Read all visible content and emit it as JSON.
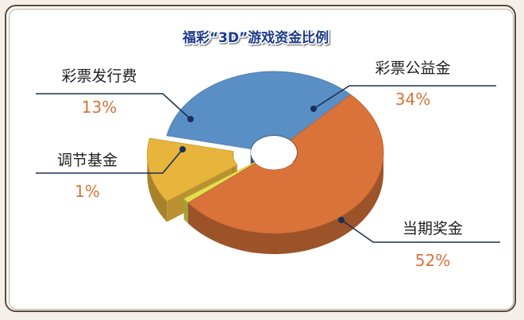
{
  "chart_data": {
    "type": "pie",
    "title": "福彩“3D”游戏资金比例",
    "categories": [
      "彩票公益金",
      "当期奖金",
      "调节基金",
      "彩票发行费"
    ],
    "values": [
      34,
      52,
      1,
      13
    ],
    "labels": [
      "34%",
      "52%",
      "1%",
      "13%"
    ],
    "colors": [
      "#5a8fc6",
      "#d9733a",
      "#e3df4c",
      "#e7b53c"
    ],
    "legend": "none",
    "style": "3d-donut"
  },
  "colors": {
    "title_fill": "#1e3a8a",
    "percent_text": "#d9733a",
    "leader_line": "#1b2f55"
  }
}
